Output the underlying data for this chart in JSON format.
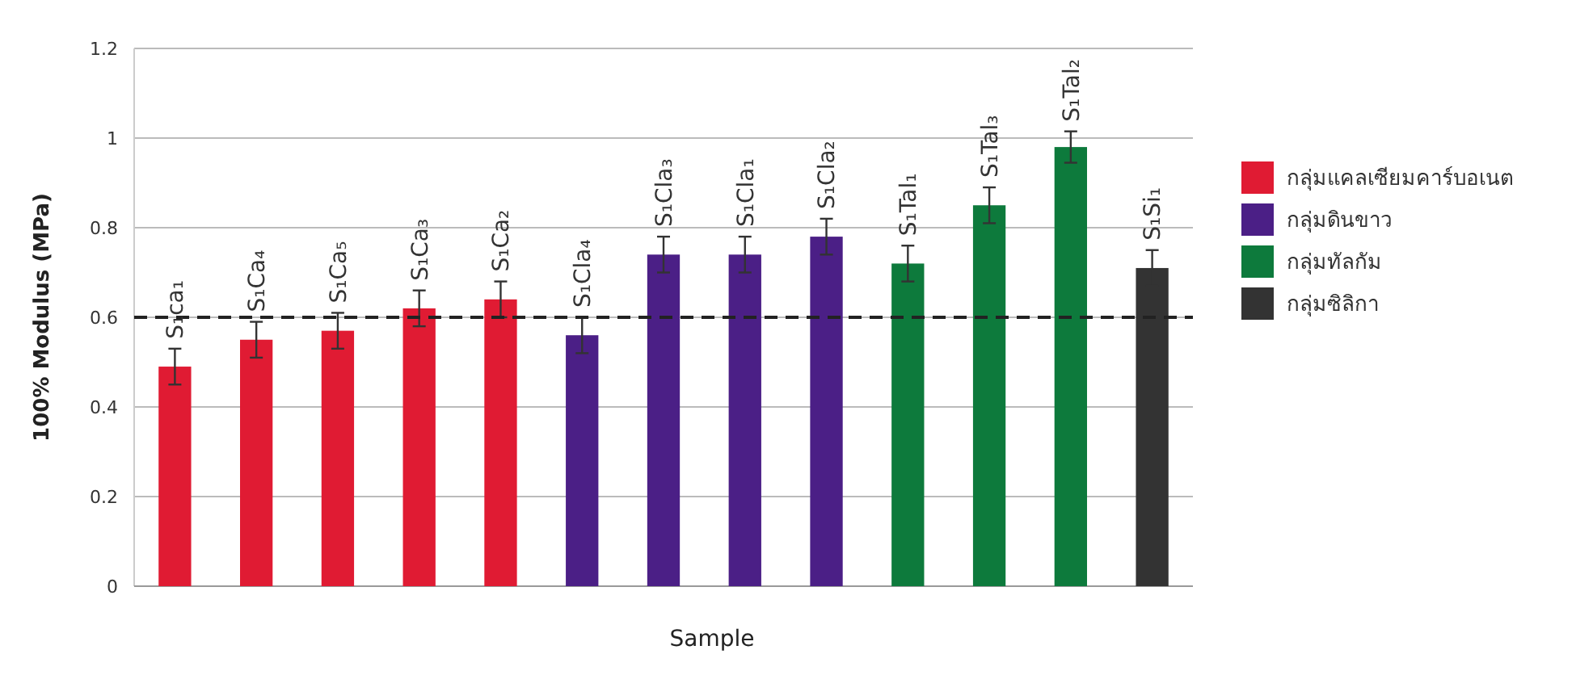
{
  "chart_data": {
    "type": "bar",
    "xlabel": "Sample",
    "ylabel": "100% Modulus (MPa)",
    "categories": [
      "S₁ca₁",
      "S₁Ca₄",
      "S₁Ca₅",
      "S₁Ca₃",
      "S₁Ca₂",
      "S₁Cla₄",
      "S₁Cla₃",
      "S₁Cla₁",
      "S₁Cla₂",
      "S₁Tal₁",
      "S₁Tal₃",
      "S₁Tal₂",
      "S₁Si₁"
    ],
    "series": [
      {
        "name": "กลุ่มแคลเซียมคาร์บอเนต",
        "color": "#e01b33",
        "values": [
          0.49,
          0.55,
          0.57,
          0.62,
          0.64,
          null,
          null,
          null,
          null,
          null,
          null,
          null,
          null
        ],
        "errors": [
          0.04,
          0.04,
          0.04,
          0.04,
          0.04,
          null,
          null,
          null,
          null,
          null,
          null,
          null,
          null
        ]
      },
      {
        "name": "กลุ่มดินขาว",
        "color": "#4b1f86",
        "values": [
          null,
          null,
          null,
          null,
          null,
          0.56,
          0.74,
          0.74,
          0.78,
          null,
          null,
          null,
          null
        ],
        "errors": [
          null,
          null,
          null,
          null,
          null,
          0.04,
          0.04,
          0.04,
          0.04,
          null,
          null,
          null,
          null
        ]
      },
      {
        "name": "กลุ่มทัลกัม",
        "color": "#0d7a3c",
        "values": [
          null,
          null,
          null,
          null,
          null,
          null,
          null,
          null,
          null,
          0.72,
          0.85,
          0.98,
          null
        ],
        "errors": [
          null,
          null,
          null,
          null,
          null,
          null,
          null,
          null,
          null,
          0.04,
          0.04,
          0.035,
          null
        ]
      },
      {
        "name": "กลุ่มซิลิกา",
        "color": "#333333",
        "values": [
          null,
          null,
          null,
          null,
          null,
          null,
          null,
          null,
          null,
          null,
          null,
          null,
          0.71
        ],
        "errors": [
          null,
          null,
          null,
          null,
          null,
          null,
          null,
          null,
          null,
          null,
          null,
          null,
          0.04
        ]
      }
    ],
    "ylim": [
      0,
      1.2
    ],
    "yticks": [
      0,
      0.2,
      0.4,
      0.6,
      0.8,
      1,
      1.2
    ],
    "grid": "y",
    "legend": "right",
    "ref_lines": [
      {
        "axis": "y",
        "value": 0.6,
        "line_style": "dashed",
        "color": "#222222"
      }
    ]
  }
}
